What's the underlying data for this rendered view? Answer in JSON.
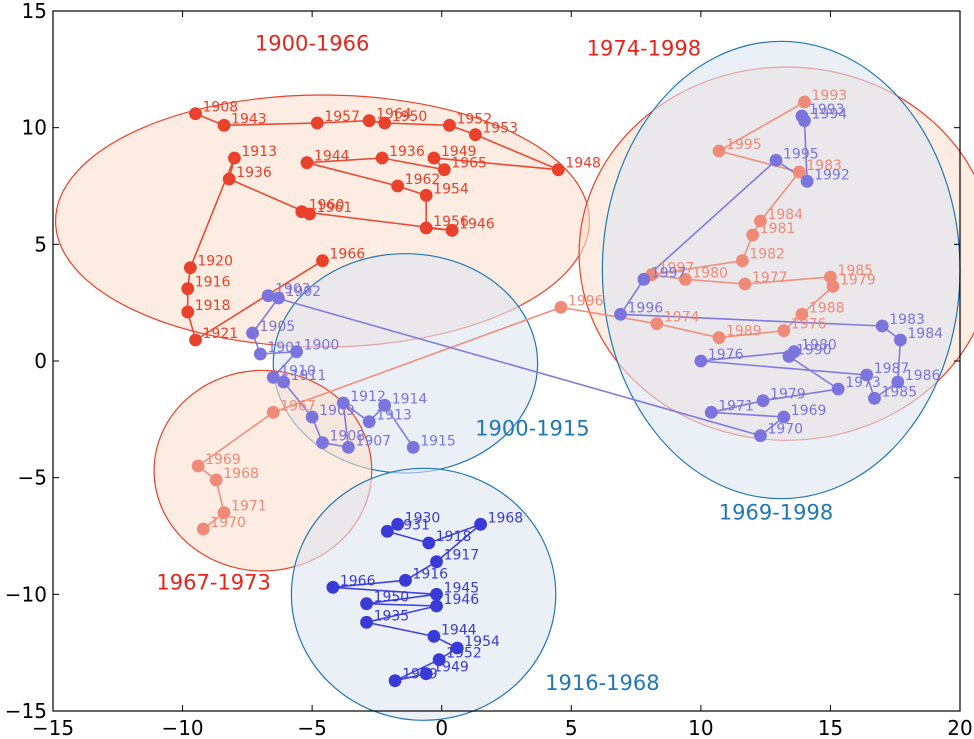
{
  "chart_data": {
    "type": "scatter",
    "xlim": [
      -15,
      20
    ],
    "ylim": [
      -15,
      15
    ],
    "x_ticks": [
      "−15",
      "−10",
      "−5",
      "0",
      "5",
      "10",
      "15",
      "20"
    ],
    "y_ticks": [
      "15",
      "10",
      "5",
      "0",
      "−5",
      "−10",
      "−15"
    ],
    "x_tick_values": [
      -15,
      -10,
      -5,
      0,
      5,
      10,
      15,
      20
    ],
    "y_tick_values": [
      15,
      10,
      5,
      0,
      -5,
      -10,
      -15
    ],
    "grid": false,
    "colors": {
      "red": "#e8412c",
      "red_light": "#f08a78",
      "blue": "#3a3ad6",
      "blue_light": "#7a74dc",
      "cluster_red_fill": "#fbe0cd",
      "cluster_blue_fill": "#dde6f2",
      "cluster_red_text": "#e8231c",
      "cluster_blue_text": "#1f77b4"
    },
    "clusters": [
      {
        "label": "1900-1966",
        "cx": -4.6,
        "cy": 6.0,
        "rx": 10.3,
        "ry": 5.4,
        "color": "red",
        "label_x": -5.0,
        "label_y": 13.3
      },
      {
        "label": "1974-1998",
        "cx": 13.3,
        "cy": 4.6,
        "rx": 8.0,
        "ry": 8.0,
        "color": "red",
        "label_x": 7.8,
        "label_y": 13.1
      },
      {
        "label": "1969-1998",
        "cx": 13.1,
        "cy": 3.9,
        "rx": 6.9,
        "ry": 9.8,
        "color": "blue",
        "label_x": 12.9,
        "label_y": -6.8
      },
      {
        "label": "1900-1915",
        "cx": -1.4,
        "cy": -0.1,
        "rx": 5.1,
        "ry": 4.7,
        "color": "blue",
        "label_x": 3.5,
        "label_y": -3.2
      },
      {
        "label": "1967-1973",
        "cx": -6.9,
        "cy": -4.7,
        "rx": 4.2,
        "ry": 4.3,
        "color": "red",
        "label_x": -8.8,
        "label_y": -9.8
      },
      {
        "label": "1916-1968",
        "cx": -0.7,
        "cy": -10.0,
        "rx": 5.1,
        "ry": 5.4,
        "color": "blue",
        "label_x": 6.2,
        "label_y": -14.1
      }
    ],
    "series": [
      {
        "color": "red",
        "line_color": "red",
        "points": [
          {
            "year": "1908",
            "x": -9.5,
            "y": 10.6
          },
          {
            "year": "1943",
            "x": -8.4,
            "y": 10.1
          },
          {
            "year": "1957",
            "x": -4.8,
            "y": 10.2
          },
          {
            "year": "1964",
            "x": -2.8,
            "y": 10.3
          },
          {
            "year": "1950",
            "x": -2.2,
            "y": 10.2
          },
          {
            "year": "1952",
            "x": 0.3,
            "y": 10.1
          },
          {
            "year": "1953",
            "x": 1.3,
            "y": 9.7
          },
          {
            "year": "1948",
            "x": 4.5,
            "y": 8.2
          },
          {
            "year": "1949",
            "x": -0.3,
            "y": 8.7
          },
          {
            "year": "1965",
            "x": 0.1,
            "y": 8.2
          },
          {
            "year": "1936",
            "x": -2.3,
            "y": 8.7
          },
          {
            "year": "1944",
            "x": -5.2,
            "y": 8.5
          },
          {
            "year": "1962",
            "x": -1.7,
            "y": 7.5
          },
          {
            "year": "1954",
            "x": -0.6,
            "y": 7.1
          },
          {
            "year": "1956",
            "x": -0.6,
            "y": 5.7
          },
          {
            "year": "1946",
            "x": 0.4,
            "y": 5.6
          },
          {
            "year": "1960",
            "x": -5.4,
            "y": 6.4
          },
          {
            "year": "1961",
            "x": -5.1,
            "y": 6.3
          },
          {
            "year": "1936",
            "x": -8.2,
            "y": 7.8
          },
          {
            "year": "1913",
            "x": -8.0,
            "y": 8.7
          },
          {
            "year": "1920",
            "x": -9.7,
            "y": 4.0
          },
          {
            "year": "1916",
            "x": -9.8,
            "y": 3.1
          },
          {
            "year": "1918",
            "x": -9.8,
            "y": 2.1
          },
          {
            "year": "1921",
            "x": -9.5,
            "y": 0.9
          },
          {
            "year": "1966",
            "x": -4.6,
            "y": 4.3
          }
        ]
      },
      {
        "color": "red_light",
        "line_color": "red_light",
        "points": [
          {
            "year": "1993",
            "x": 14.0,
            "y": 11.1
          },
          {
            "year": "1995",
            "x": 10.7,
            "y": 9.0
          },
          {
            "year": "1983",
            "x": 13.8,
            "y": 8.1
          },
          {
            "year": "1984",
            "x": 12.3,
            "y": 6.0
          },
          {
            "year": "1981",
            "x": 12.0,
            "y": 5.4
          },
          {
            "year": "1982",
            "x": 11.6,
            "y": 4.3
          },
          {
            "year": "1997",
            "x": 8.1,
            "y": 3.7
          },
          {
            "year": "1980",
            "x": 9.4,
            "y": 3.5
          },
          {
            "year": "1977",
            "x": 11.7,
            "y": 3.3
          },
          {
            "year": "1985",
            "x": 15.0,
            "y": 3.6
          },
          {
            "year": "1979",
            "x": 15.1,
            "y": 3.2
          },
          {
            "year": "1988",
            "x": 13.9,
            "y": 2.0
          },
          {
            "year": "1976",
            "x": 13.2,
            "y": 1.3
          },
          {
            "year": "1989",
            "x": 10.7,
            "y": 1.0
          },
          {
            "year": "1974",
            "x": 8.3,
            "y": 1.6
          },
          {
            "year": "1996",
            "x": 4.6,
            "y": 2.3
          },
          {
            "year": "1967",
            "x": -6.5,
            "y": -2.2
          },
          {
            "year": "1969",
            "x": -9.4,
            "y": -4.5
          },
          {
            "year": "1968",
            "x": -8.7,
            "y": -5.1
          },
          {
            "year": "1971",
            "x": -8.4,
            "y": -6.5
          },
          {
            "year": "1970",
            "x": -9.2,
            "y": -7.2
          }
        ]
      },
      {
        "color": "blue_light",
        "line_color": "blue_light",
        "points": [
          {
            "year": "1993",
            "x": 13.9,
            "y": 10.5
          },
          {
            "year": "1994",
            "x": 14.0,
            "y": 10.3
          },
          {
            "year": "1992",
            "x": 14.1,
            "y": 7.7
          },
          {
            "year": "1995",
            "x": 12.9,
            "y": 8.6
          },
          {
            "year": "1997",
            "x": 7.8,
            "y": 3.5
          },
          {
            "year": "1996",
            "x": 6.9,
            "y": 2.0
          },
          {
            "year": "1983",
            "x": 17.0,
            "y": 1.5
          },
          {
            "year": "1984",
            "x": 17.7,
            "y": 0.9
          },
          {
            "year": "1986",
            "x": 17.6,
            "y": -0.9
          },
          {
            "year": "1985",
            "x": 16.7,
            "y": -1.6
          },
          {
            "year": "1987",
            "x": 16.4,
            "y": -0.6
          },
          {
            "year": "1976",
            "x": 10.0,
            "y": 0.0
          },
          {
            "year": "1980",
            "x": 13.6,
            "y": 0.4
          },
          {
            "year": "1990",
            "x": 13.4,
            "y": 0.2
          },
          {
            "year": "1973",
            "x": 15.3,
            "y": -1.2
          },
          {
            "year": "1979",
            "x": 12.4,
            "y": -1.7
          },
          {
            "year": "1971",
            "x": 10.4,
            "y": -2.2
          },
          {
            "year": "1969",
            "x": 13.2,
            "y": -2.4
          },
          {
            "year": "1970",
            "x": 12.3,
            "y": -3.2
          },
          {
            "year": "1903",
            "x": -6.7,
            "y": 2.8
          },
          {
            "year": "1902",
            "x": -6.3,
            "y": 2.7
          },
          {
            "year": "1905",
            "x": -7.3,
            "y": 1.2
          },
          {
            "year": "1901",
            "x": -7.0,
            "y": 0.3
          },
          {
            "year": "1900",
            "x": -5.6,
            "y": 0.4
          },
          {
            "year": "1910",
            "x": -6.5,
            "y": -0.7
          },
          {
            "year": "1911",
            "x": -6.1,
            "y": -0.9
          },
          {
            "year": "1909",
            "x": -5.0,
            "y": -2.4
          },
          {
            "year": "1908",
            "x": -4.6,
            "y": -3.5
          },
          {
            "year": "1907",
            "x": -3.6,
            "y": -3.7
          },
          {
            "year": "1912",
            "x": -3.8,
            "y": -1.8
          },
          {
            "year": "1913",
            "x": -2.8,
            "y": -2.6
          },
          {
            "year": "1914",
            "x": -2.2,
            "y": -1.9
          },
          {
            "year": "1915",
            "x": -1.1,
            "y": -3.7
          }
        ]
      },
      {
        "color": "blue",
        "line_color": "blue",
        "points": [
          {
            "year": "1930",
            "x": -1.7,
            "y": -7.0
          },
          {
            "year": "1931",
            "x": -2.1,
            "y": -7.3
          },
          {
            "year": "1918",
            "x": -0.5,
            "y": -7.8
          },
          {
            "year": "1968",
            "x": 1.5,
            "y": -7.0
          },
          {
            "year": "1917",
            "x": -0.2,
            "y": -8.6
          },
          {
            "year": "1916",
            "x": -1.4,
            "y": -9.4
          },
          {
            "year": "1966",
            "x": -4.2,
            "y": -9.7
          },
          {
            "year": "1945",
            "x": -0.2,
            "y": -10.0
          },
          {
            "year": "1950",
            "x": -2.9,
            "y": -10.4
          },
          {
            "year": "1946",
            "x": -0.2,
            "y": -10.5
          },
          {
            "year": "1935",
            "x": -2.9,
            "y": -11.2
          },
          {
            "year": "1944",
            "x": -0.3,
            "y": -11.8
          },
          {
            "year": "1954",
            "x": 0.6,
            "y": -12.3
          },
          {
            "year": "1952",
            "x": -0.1,
            "y": -12.8
          },
          {
            "year": "1959",
            "x": -1.8,
            "y": -13.7
          },
          {
            "year": "1949",
            "x": -0.6,
            "y": -13.4
          }
        ]
      }
    ]
  }
}
